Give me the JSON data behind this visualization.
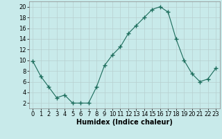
{
  "x": [
    0,
    1,
    2,
    3,
    4,
    5,
    6,
    7,
    8,
    9,
    10,
    11,
    12,
    13,
    14,
    15,
    16,
    17,
    18,
    19,
    20,
    21,
    22,
    23
  ],
  "y": [
    9.8,
    7,
    5,
    3,
    3.5,
    2,
    2,
    2,
    5,
    9,
    11,
    12.5,
    15,
    16.5,
    18,
    19.5,
    20,
    19,
    14,
    10,
    7.5,
    6,
    6.5,
    8.5
  ],
  "line_color": "#1a6b5a",
  "marker": "+",
  "marker_size": 4,
  "bg_color": "#c8eaea",
  "grid_color": "#b8cfcf",
  "xlabel": "Humidex (Indice chaleur)",
  "xlabel_fontsize": 7,
  "tick_fontsize": 6,
  "xlim": [
    -0.5,
    23.5
  ],
  "ylim": [
    1,
    21
  ],
  "yticks": [
    2,
    4,
    6,
    8,
    10,
    12,
    14,
    16,
    18,
    20
  ],
  "xticks": [
    0,
    1,
    2,
    3,
    4,
    5,
    6,
    7,
    8,
    9,
    10,
    11,
    12,
    13,
    14,
    15,
    16,
    17,
    18,
    19,
    20,
    21,
    22,
    23
  ],
  "xticklabels": [
    "0",
    "1",
    "2",
    "3",
    "4",
    "5",
    "6",
    "7",
    "8",
    "9",
    "10",
    "11",
    "12",
    "13",
    "14",
    "15",
    "16",
    "17",
    "18",
    "19",
    "20",
    "21",
    "22",
    "23"
  ]
}
